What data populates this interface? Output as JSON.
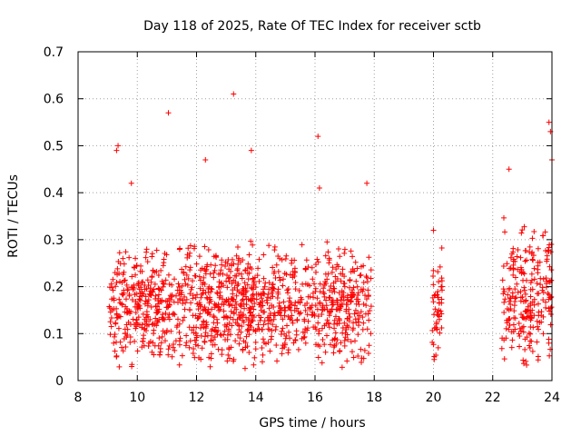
{
  "chart_data": {
    "type": "scatter",
    "title": "Day 118 of 2025, Rate Of TEC Index for receiver sctb",
    "xlabel": "GPS time / hours",
    "ylabel": "ROTI / TECUs",
    "xlim": [
      8,
      24
    ],
    "ylim": [
      0,
      0.7
    ],
    "x_ticks": [
      8,
      10,
      12,
      14,
      16,
      18,
      20,
      22,
      24
    ],
    "x_tick_labels": [
      "8",
      "10",
      "12",
      "14",
      "16",
      "18",
      "20",
      "22",
      "24"
    ],
    "y_ticks": [
      0,
      0.1,
      0.2,
      0.3,
      0.4,
      0.5,
      0.6,
      0.7
    ],
    "y_tick_labels": [
      "0",
      "0.1",
      "0.2",
      "0.3",
      "0.4",
      "0.5",
      "0.6",
      "0.7"
    ],
    "grid": true,
    "marker": "+",
    "color": "#ff0000",
    "series": [
      {
        "name": "ROTI",
        "segments": [
          {
            "x_start": 9.05,
            "x_end": 17.9,
            "y_typical_min": 0.02,
            "y_typical_max": 0.3
          },
          {
            "x_start": 19.95,
            "x_end": 20.3,
            "y_typical_min": 0.02,
            "y_typical_max": 0.3
          },
          {
            "x_start": 22.3,
            "x_end": 24.0,
            "y_typical_min": 0.02,
            "y_typical_max": 0.35
          }
        ],
        "notable_points": [
          {
            "x": 9.3,
            "y": 0.49
          },
          {
            "x": 9.35,
            "y": 0.5
          },
          {
            "x": 9.8,
            "y": 0.42
          },
          {
            "x": 11.05,
            "y": 0.57
          },
          {
            "x": 12.3,
            "y": 0.47
          },
          {
            "x": 13.25,
            "y": 0.61
          },
          {
            "x": 13.85,
            "y": 0.49
          },
          {
            "x": 16.1,
            "y": 0.52
          },
          {
            "x": 16.15,
            "y": 0.41
          },
          {
            "x": 17.75,
            "y": 0.42
          },
          {
            "x": 20.0,
            "y": 0.32
          },
          {
            "x": 22.55,
            "y": 0.45
          },
          {
            "x": 23.9,
            "y": 0.55
          },
          {
            "x": 23.95,
            "y": 0.53
          },
          {
            "x": 24.0,
            "y": 0.47
          }
        ]
      }
    ]
  }
}
